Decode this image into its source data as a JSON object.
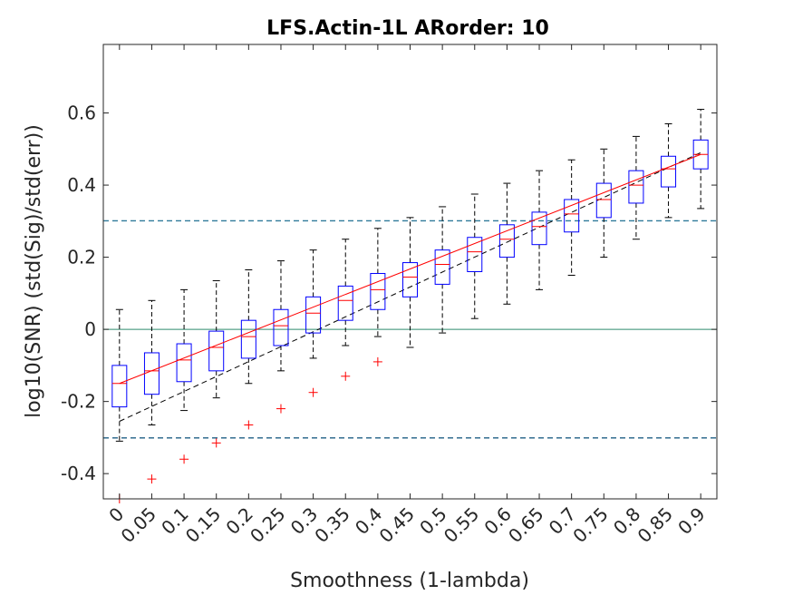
{
  "chart_data": {
    "type": "box",
    "title": "LFS.Actin-1L ARorder: 10",
    "xlabel": "Smoothness (1-lambda)",
    "ylabel": "log10(SNR) (std(Sig)/std(err))",
    "categories": [
      "0",
      "0.05",
      "0.1",
      "0.15",
      "0.2",
      "0.25",
      "0.3",
      "0.35",
      "0.4",
      "0.45",
      "0.5",
      "0.55",
      "0.6",
      "0.65",
      "0.7",
      "0.75",
      "0.8",
      "0.85",
      "0.9"
    ],
    "ylim": [
      -0.47,
      0.79
    ],
    "yticks": [
      -0.4,
      -0.2,
      0,
      0.2,
      0.4,
      0.6
    ],
    "ytick_labels": [
      "-0.4",
      "-0.2",
      "0",
      "0.2",
      "0.4",
      "0.6"
    ],
    "grid": false,
    "boxes": [
      {
        "whisker_low": -0.31,
        "q1": -0.215,
        "median": -0.15,
        "q3": -0.1,
        "whisker_high": 0.055,
        "outliers": [
          -0.47
        ]
      },
      {
        "whisker_low": -0.265,
        "q1": -0.18,
        "median": -0.115,
        "q3": -0.065,
        "whisker_high": 0.08,
        "outliers": [
          -0.415
        ]
      },
      {
        "whisker_low": -0.225,
        "q1": -0.145,
        "median": -0.085,
        "q3": -0.04,
        "whisker_high": 0.11,
        "outliers": [
          -0.36
        ]
      },
      {
        "whisker_low": -0.19,
        "q1": -0.115,
        "median": -0.05,
        "q3": -0.005,
        "whisker_high": 0.135,
        "outliers": [
          -0.315
        ]
      },
      {
        "whisker_low": -0.15,
        "q1": -0.08,
        "median": -0.02,
        "q3": 0.025,
        "whisker_high": 0.165,
        "outliers": [
          -0.265
        ]
      },
      {
        "whisker_low": -0.115,
        "q1": -0.045,
        "median": 0.01,
        "q3": 0.055,
        "whisker_high": 0.19,
        "outliers": [
          -0.22
        ]
      },
      {
        "whisker_low": -0.08,
        "q1": -0.01,
        "median": 0.045,
        "q3": 0.09,
        "whisker_high": 0.22,
        "outliers": [
          -0.175
        ]
      },
      {
        "whisker_low": -0.045,
        "q1": 0.025,
        "median": 0.08,
        "q3": 0.12,
        "whisker_high": 0.25,
        "outliers": [
          -0.13
        ]
      },
      {
        "whisker_low": -0.02,
        "q1": 0.055,
        "median": 0.11,
        "q3": 0.155,
        "whisker_high": 0.28,
        "outliers": [
          -0.09
        ]
      },
      {
        "whisker_low": -0.05,
        "q1": 0.09,
        "median": 0.145,
        "q3": 0.185,
        "whisker_high": 0.31,
        "outliers": []
      },
      {
        "whisker_low": -0.01,
        "q1": 0.125,
        "median": 0.18,
        "q3": 0.22,
        "whisker_high": 0.34,
        "outliers": []
      },
      {
        "whisker_low": 0.03,
        "q1": 0.16,
        "median": 0.215,
        "q3": 0.255,
        "whisker_high": 0.375,
        "outliers": []
      },
      {
        "whisker_low": 0.07,
        "q1": 0.2,
        "median": 0.25,
        "q3": 0.29,
        "whisker_high": 0.405,
        "outliers": []
      },
      {
        "whisker_low": 0.11,
        "q1": 0.235,
        "median": 0.285,
        "q3": 0.325,
        "whisker_high": 0.44,
        "outliers": []
      },
      {
        "whisker_low": 0.15,
        "q1": 0.27,
        "median": 0.32,
        "q3": 0.36,
        "whisker_high": 0.47,
        "outliers": []
      },
      {
        "whisker_low": 0.2,
        "q1": 0.31,
        "median": 0.36,
        "q3": 0.405,
        "whisker_high": 0.5,
        "outliers": []
      },
      {
        "whisker_low": 0.25,
        "q1": 0.35,
        "median": 0.4,
        "q3": 0.44,
        "whisker_high": 0.535,
        "outliers": []
      },
      {
        "whisker_low": 0.31,
        "q1": 0.395,
        "median": 0.445,
        "q3": 0.48,
        "whisker_high": 0.57,
        "outliers": []
      },
      {
        "whisker_low": 0.335,
        "q1": 0.445,
        "median": 0.485,
        "q3": 0.525,
        "whisker_high": 0.61,
        "outliers": []
      }
    ],
    "reference_lines": [
      {
        "y": 0.301,
        "style": "dashed",
        "color": "#2f7a9a"
      },
      {
        "y": 0,
        "style": "solid",
        "color": "#2e8b6e"
      },
      {
        "y": -0.301,
        "style": "dashed",
        "color": "#1f5f85"
      }
    ],
    "median_fit_line": {
      "color": "#ff0000",
      "from": {
        "x": "0",
        "y": -0.15
      },
      "to": {
        "x": "0.9",
        "y": 0.485
      }
    },
    "trend_line": {
      "color": "#000000",
      "style": "dashed",
      "from": {
        "x": "0",
        "y": -0.255
      },
      "to": {
        "x": "0.9",
        "y": 0.49
      }
    },
    "colors": {
      "box": "#0000ff",
      "median": "#ff0000",
      "whisker": "#000000",
      "outlier": "#ff0000",
      "axis": "#262626"
    }
  }
}
